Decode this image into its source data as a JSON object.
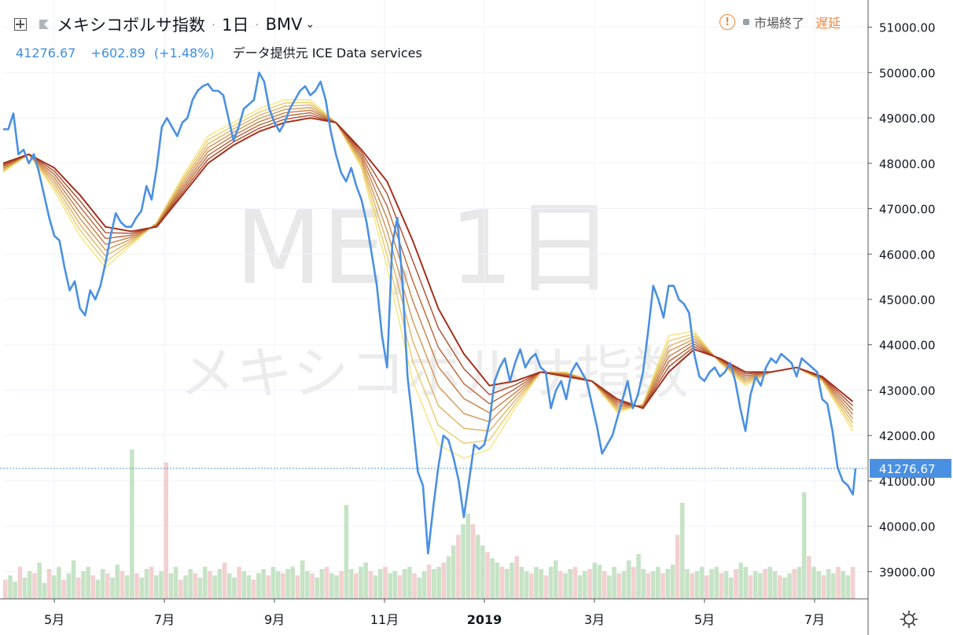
{
  "header": {
    "title": "メキシコボルサ指数",
    "interval": "1日",
    "exchange": "BMV",
    "last": "41276.67",
    "change": "+602.89",
    "change_pct": "(+1.48%)",
    "source": "データ提供元 ICE Data services",
    "market_status": "市場終了",
    "delay": "遅延"
  },
  "watermark": {
    "symbol": "ME, 1日",
    "name": "メキシコボルサ指数"
  },
  "icons": {
    "add": "plus-square-icon",
    "flag": "flag-icon",
    "warning": "warning-icon",
    "settings": "gear-icon"
  },
  "colors": {
    "price_line": "#4a90e2",
    "ribbon_light": "#f7e57a",
    "ribbon_dark": "#a3301c",
    "up_volume": "#b8dcb8",
    "down_volume": "#f0c4c4"
  },
  "chart_data": {
    "type": "line",
    "y_ticks": [
      "51000.00",
      "50000.00",
      "49000.00",
      "48000.00",
      "47000.00",
      "46000.00",
      "45000.00",
      "44000.00",
      "43000.00",
      "42000.00",
      "41000.00",
      "40000.00",
      "39000.00"
    ],
    "y_range": [
      38400,
      51600
    ],
    "x_ticks": [
      {
        "label": "5月",
        "t": 20
      },
      {
        "label": "7月",
        "t": 63
      },
      {
        "label": "9月",
        "t": 106
      },
      {
        "label": "11月",
        "t": 149
      },
      {
        "label": "2019",
        "t": 188
      },
      {
        "label": "3月",
        "t": 231
      },
      {
        "label": "5月",
        "t": 274
      },
      {
        "label": "7月",
        "t": 317
      }
    ],
    "current_price_label": "41276.67",
    "current_price": 41276.67,
    "price_series": [
      [
        0,
        48750
      ],
      [
        2,
        48750
      ],
      [
        4,
        49100
      ],
      [
        6,
        48200
      ],
      [
        8,
        48300
      ],
      [
        10,
        48000
      ],
      [
        12,
        48200
      ],
      [
        14,
        47800
      ],
      [
        16,
        47300
      ],
      [
        18,
        46800
      ],
      [
        20,
        46400
      ],
      [
        22,
        46300
      ],
      [
        24,
        45700
      ],
      [
        26,
        45200
      ],
      [
        28,
        45400
      ],
      [
        30,
        44800
      ],
      [
        32,
        44650
      ],
      [
        34,
        45200
      ],
      [
        36,
        45000
      ],
      [
        38,
        45300
      ],
      [
        40,
        45800
      ],
      [
        42,
        46400
      ],
      [
        44,
        46900
      ],
      [
        46,
        46700
      ],
      [
        48,
        46600
      ],
      [
        50,
        46600
      ],
      [
        52,
        46800
      ],
      [
        54,
        46950
      ],
      [
        56,
        47500
      ],
      [
        58,
        47200
      ],
      [
        60,
        47900
      ],
      [
        62,
        48800
      ],
      [
        64,
        49000
      ],
      [
        66,
        48800
      ],
      [
        68,
        48600
      ],
      [
        70,
        48900
      ],
      [
        72,
        49000
      ],
      [
        74,
        49400
      ],
      [
        76,
        49600
      ],
      [
        78,
        49700
      ],
      [
        80,
        49750
      ],
      [
        82,
        49600
      ],
      [
        84,
        49600
      ],
      [
        86,
        49500
      ],
      [
        88,
        49000
      ],
      [
        90,
        48500
      ],
      [
        92,
        48800
      ],
      [
        94,
        49200
      ],
      [
        96,
        49300
      ],
      [
        98,
        49400
      ],
      [
        100,
        50000
      ],
      [
        102,
        49800
      ],
      [
        104,
        49200
      ],
      [
        106,
        48900
      ],
      [
        108,
        48700
      ],
      [
        110,
        48900
      ],
      [
        112,
        49200
      ],
      [
        114,
        49400
      ],
      [
        116,
        49600
      ],
      [
        118,
        49700
      ],
      [
        120,
        49500
      ],
      [
        122,
        49600
      ],
      [
        124,
        49800
      ],
      [
        126,
        49400
      ],
      [
        128,
        48700
      ],
      [
        130,
        48200
      ],
      [
        132,
        47800
      ],
      [
        134,
        47600
      ],
      [
        136,
        47900
      ],
      [
        138,
        47500
      ],
      [
        140,
        47200
      ],
      [
        142,
        46700
      ],
      [
        144,
        46000
      ],
      [
        146,
        45300
      ],
      [
        148,
        44200
      ],
      [
        150,
        43500
      ],
      [
        152,
        46200
      ],
      [
        154,
        46800
      ],
      [
        156,
        45400
      ],
      [
        158,
        43300
      ],
      [
        160,
        42300
      ],
      [
        162,
        41200
      ],
      [
        164,
        40900
      ],
      [
        166,
        39400
      ],
      [
        168,
        40400
      ],
      [
        170,
        41300
      ],
      [
        172,
        42000
      ],
      [
        174,
        41900
      ],
      [
        176,
        41500
      ],
      [
        178,
        41000
      ],
      [
        180,
        40200
      ],
      [
        182,
        41000
      ],
      [
        184,
        41800
      ],
      [
        186,
        41700
      ],
      [
        188,
        41800
      ],
      [
        190,
        42300
      ],
      [
        192,
        43200
      ],
      [
        194,
        43500
      ],
      [
        196,
        43700
      ],
      [
        198,
        43200
      ],
      [
        200,
        43600
      ],
      [
        202,
        43900
      ],
      [
        204,
        43500
      ],
      [
        206,
        43700
      ],
      [
        208,
        43800
      ],
      [
        210,
        43500
      ],
      [
        212,
        43400
      ],
      [
        214,
        42600
      ],
      [
        216,
        43000
      ],
      [
        218,
        43200
      ],
      [
        220,
        42800
      ],
      [
        222,
        43400
      ],
      [
        224,
        43600
      ],
      [
        226,
        43400
      ],
      [
        228,
        43200
      ],
      [
        230,
        42700
      ],
      [
        232,
        42200
      ],
      [
        234,
        41600
      ],
      [
        236,
        41800
      ],
      [
        238,
        42000
      ],
      [
        240,
        42400
      ],
      [
        242,
        42800
      ],
      [
        244,
        43200
      ],
      [
        246,
        42600
      ],
      [
        248,
        42900
      ],
      [
        250,
        43400
      ],
      [
        252,
        44300
      ],
      [
        254,
        45300
      ],
      [
        256,
        45000
      ],
      [
        258,
        44600
      ],
      [
        260,
        45300
      ],
      [
        262,
        45300
      ],
      [
        264,
        45000
      ],
      [
        266,
        44900
      ],
      [
        268,
        44700
      ],
      [
        270,
        43800
      ],
      [
        272,
        43300
      ],
      [
        274,
        43200
      ],
      [
        276,
        43400
      ],
      [
        278,
        43500
      ],
      [
        280,
        43300
      ],
      [
        282,
        43400
      ],
      [
        284,
        43600
      ],
      [
        286,
        43200
      ],
      [
        288,
        42600
      ],
      [
        290,
        42100
      ],
      [
        292,
        42900
      ],
      [
        294,
        43300
      ],
      [
        296,
        43100
      ],
      [
        298,
        43500
      ],
      [
        300,
        43700
      ],
      [
        302,
        43600
      ],
      [
        304,
        43800
      ],
      [
        306,
        43700
      ],
      [
        308,
        43600
      ],
      [
        310,
        43300
      ],
      [
        312,
        43700
      ],
      [
        314,
        43600
      ],
      [
        316,
        43500
      ],
      [
        318,
        43400
      ],
      [
        320,
        42800
      ],
      [
        322,
        42700
      ],
      [
        324,
        42100
      ],
      [
        326,
        41300
      ],
      [
        328,
        41000
      ],
      [
        330,
        40900
      ],
      [
        332,
        40700
      ],
      [
        333,
        41276.67
      ]
    ],
    "ribbon": {
      "fast": [
        [
          0,
          47800
        ],
        [
          10,
          48200
        ],
        [
          20,
          47400
        ],
        [
          30,
          46400
        ],
        [
          40,
          45700
        ],
        [
          50,
          46200
        ],
        [
          60,
          46700
        ],
        [
          70,
          47700
        ],
        [
          80,
          48600
        ],
        [
          90,
          48900
        ],
        [
          100,
          49200
        ],
        [
          110,
          49400
        ],
        [
          120,
          49400
        ],
        [
          130,
          48900
        ],
        [
          140,
          47900
        ],
        [
          150,
          45700
        ],
        [
          160,
          43200
        ],
        [
          170,
          41800
        ],
        [
          180,
          41500
        ],
        [
          190,
          41700
        ],
        [
          200,
          42600
        ],
        [
          210,
          43400
        ],
        [
          220,
          43400
        ],
        [
          230,
          43200
        ],
        [
          240,
          42500
        ],
        [
          250,
          42700
        ],
        [
          260,
          44200
        ],
        [
          270,
          44300
        ],
        [
          280,
          43600
        ],
        [
          290,
          43100
        ],
        [
          300,
          43400
        ],
        [
          310,
          43500
        ],
        [
          320,
          43200
        ],
        [
          333,
          42000
        ]
      ],
      "slow": [
        [
          0,
          48000
        ],
        [
          10,
          48200
        ],
        [
          20,
          47900
        ],
        [
          30,
          47300
        ],
        [
          40,
          46600
        ],
        [
          50,
          46500
        ],
        [
          60,
          46600
        ],
        [
          70,
          47300
        ],
        [
          80,
          48000
        ],
        [
          90,
          48400
        ],
        [
          100,
          48700
        ],
        [
          110,
          48900
        ],
        [
          120,
          49000
        ],
        [
          130,
          48900
        ],
        [
          140,
          48300
        ],
        [
          150,
          47600
        ],
        [
          160,
          46300
        ],
        [
          170,
          44800
        ],
        [
          180,
          43800
        ],
        [
          190,
          43100
        ],
        [
          200,
          43200
        ],
        [
          210,
          43400
        ],
        [
          220,
          43300
        ],
        [
          230,
          43200
        ],
        [
          240,
          42800
        ],
        [
          250,
          42600
        ],
        [
          260,
          43400
        ],
        [
          270,
          43900
        ],
        [
          280,
          43700
        ],
        [
          290,
          43400
        ],
        [
          300,
          43400
        ],
        [
          310,
          43500
        ],
        [
          320,
          43300
        ],
        [
          333,
          42700
        ]
      ],
      "lines": 8
    },
    "volume_series": [
      18,
      22,
      16,
      30,
      20,
      26,
      24,
      34,
      15,
      28,
      22,
      30,
      18,
      24,
      36,
      20,
      26,
      30,
      22,
      18,
      28,
      24,
      20,
      32,
      26,
      22,
      140,
      24,
      20,
      28,
      30,
      22,
      26,
      128,
      24,
      30,
      18,
      22,
      28,
      24,
      20,
      30,
      26,
      22,
      28,
      34,
      24,
      20,
      30,
      26,
      22,
      18,
      24,
      28,
      22,
      30,
      26,
      24,
      28,
      30,
      22,
      36,
      26,
      24,
      20,
      28,
      30,
      24,
      22,
      26,
      88,
      28,
      24,
      30,
      34,
      26,
      22,
      28,
      30,
      24,
      26,
      22,
      28,
      30,
      24,
      20,
      26,
      32,
      28,
      30,
      34,
      40,
      50,
      60,
      70,
      80,
      70,
      60,
      50,
      44,
      38,
      34,
      30,
      28,
      34,
      40,
      30,
      26,
      24,
      30,
      28,
      22,
      30,
      36,
      26,
      24,
      28,
      30,
      22,
      26,
      28,
      34,
      32,
      26,
      22,
      30,
      24,
      26,
      36,
      30,
      42,
      28,
      24,
      26,
      30,
      24,
      28,
      32,
      60,
      90,
      28,
      24,
      26,
      30,
      22,
      28,
      30,
      24,
      26,
      20,
      28,
      34,
      30,
      22,
      26,
      24,
      28,
      30,
      26,
      22,
      20,
      24,
      28,
      30,
      100,
      40,
      30,
      26,
      22,
      28,
      24,
      30,
      26,
      22,
      30
    ],
    "volume_max": 140
  }
}
